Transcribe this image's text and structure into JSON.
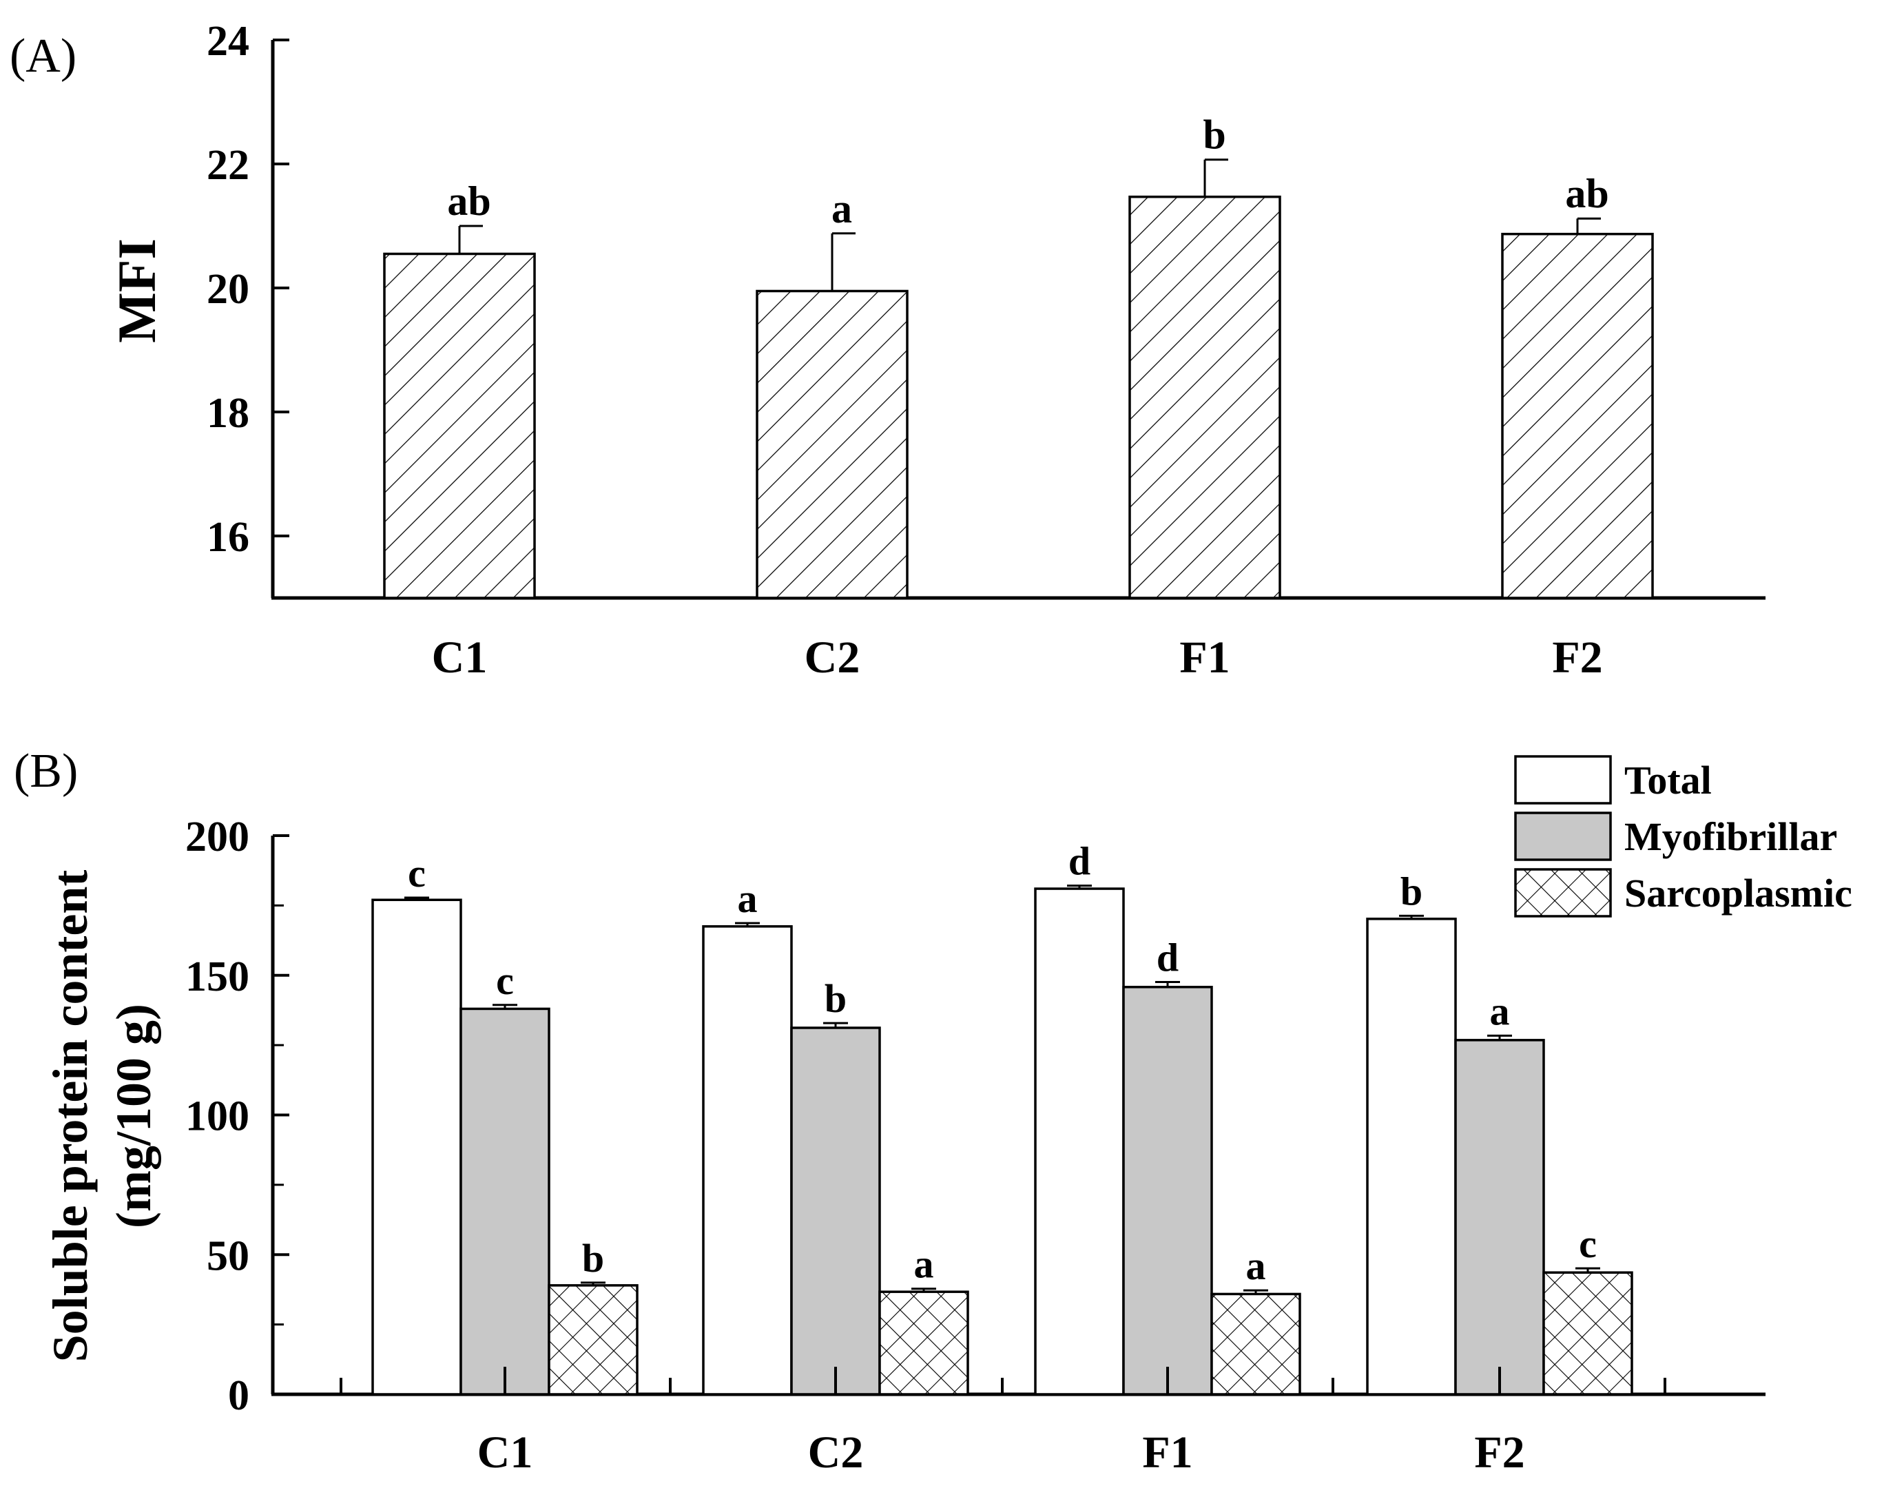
{
  "figure": {
    "panel_a_label": "(A)",
    "panel_b_label": "(B)"
  },
  "chart_data": [
    {
      "type": "bar",
      "panel": "A",
      "title": "",
      "xlabel": "",
      "ylabel": "MFI",
      "ylim": [
        15,
        24
      ],
      "yticks": [
        16,
        18,
        20,
        22,
        24
      ],
      "categories": [
        "C1",
        "C2",
        "F1",
        "F2"
      ],
      "series": [
        {
          "name": "MFI",
          "fill": "hatch-diagonal",
          "values": [
            20.55,
            19.95,
            21.47,
            20.87
          ],
          "errors": [
            0.45,
            0.93,
            0.6,
            0.25
          ],
          "significance": [
            "ab",
            "a",
            "b",
            "ab"
          ]
        }
      ],
      "grid": false,
      "legend": "none"
    },
    {
      "type": "bar",
      "panel": "B",
      "title": "",
      "xlabel": "",
      "ylabel": "Soluble protein content",
      "ylabel_unit": "(mg/100 g)",
      "ylim": [
        0,
        200
      ],
      "yticks": [
        0,
        50,
        100,
        150,
        200
      ],
      "categories": [
        "C1",
        "C2",
        "F1",
        "F2"
      ],
      "series": [
        {
          "name": "Total",
          "fill": "white",
          "values": [
            177,
            167.5,
            181,
            170.2
          ],
          "errors": [
            0.3,
            0.7,
            0.6,
            0.6
          ],
          "significance": [
            "c",
            "a",
            "d",
            "b"
          ]
        },
        {
          "name": "Myofibrillar",
          "fill": "#c8c8c8",
          "values": [
            138,
            131.2,
            145.8,
            126.8
          ],
          "errors": [
            0.9,
            1.2,
            1.3,
            1.1
          ],
          "significance": [
            "c",
            "b",
            "d",
            "a"
          ]
        },
        {
          "name": "Sarcoplasmic",
          "fill": "hatch-cross",
          "values": [
            39,
            36.7,
            35.9,
            43.6
          ],
          "errors": [
            0.5,
            0.6,
            0.8,
            1.0
          ],
          "significance": [
            "b",
            "a",
            "a",
            "c"
          ]
        }
      ],
      "grid": false,
      "legend": "top-right"
    }
  ]
}
